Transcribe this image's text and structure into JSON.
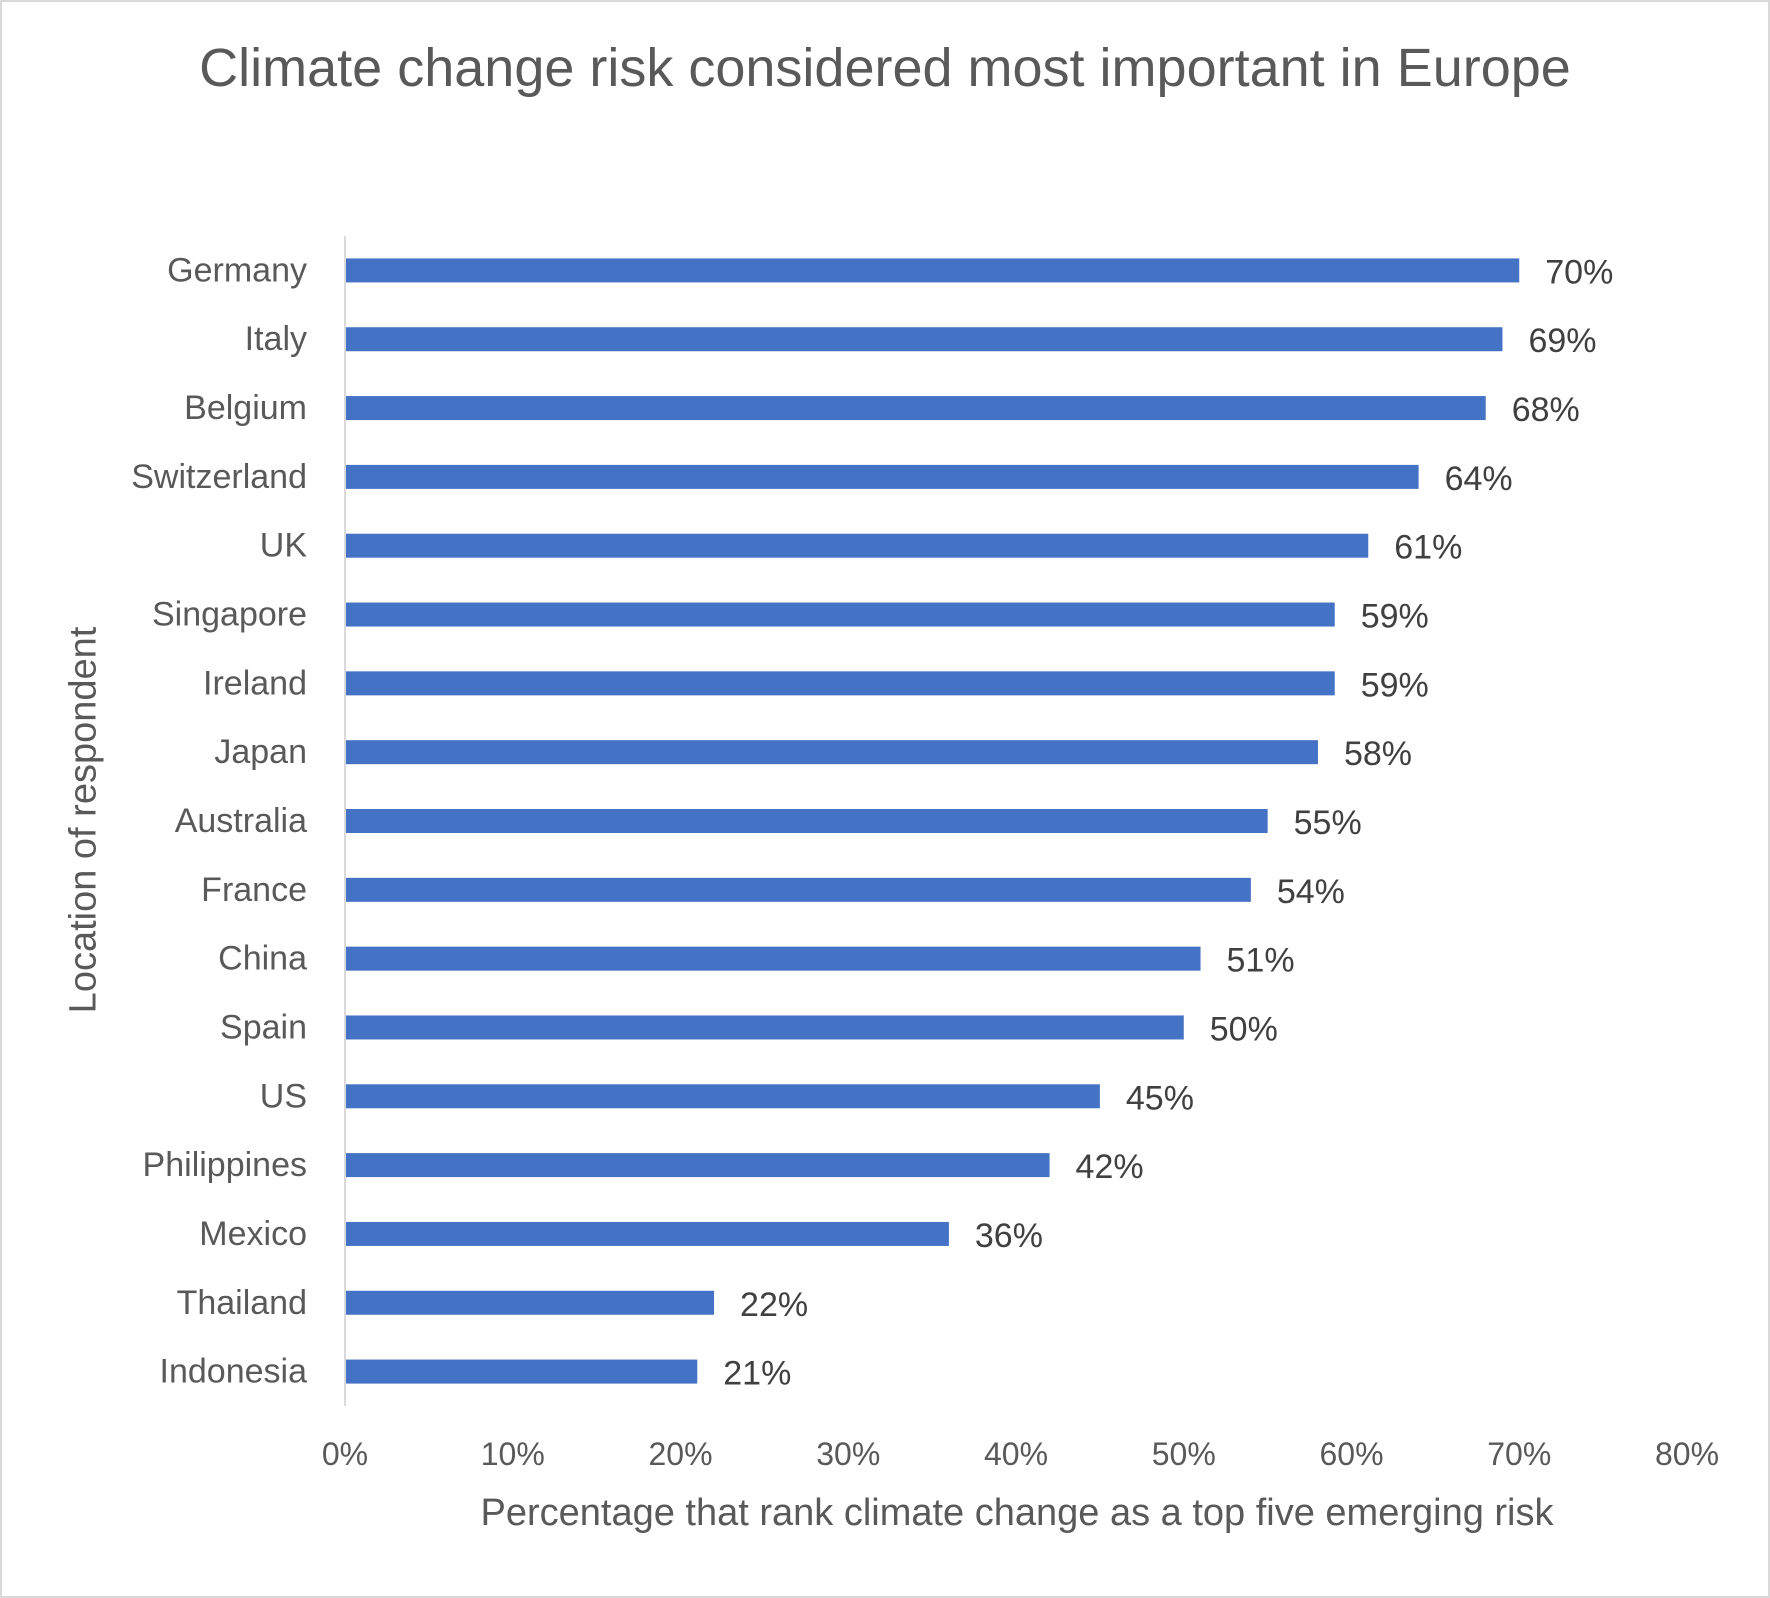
{
  "chart_data": {
    "type": "bar",
    "orientation": "horizontal",
    "title": "Climate change risk considered most important in Europe",
    "xlabel": "Percentage that rank climate change as a top five emerging risk",
    "ylabel": "Location of respondent",
    "categories": [
      "Germany",
      "Italy",
      "Belgium",
      "Switzerland",
      "UK",
      "Singapore",
      "Ireland",
      "Japan",
      "Australia",
      "France",
      "China",
      "Spain",
      "US",
      "Philippines",
      "Mexico",
      "Thailand",
      "Indonesia"
    ],
    "values": [
      70,
      69,
      68,
      64,
      61,
      59,
      59,
      58,
      55,
      54,
      51,
      50,
      45,
      42,
      36,
      22,
      21
    ],
    "value_labels": [
      "70%",
      "69%",
      "68%",
      "64%",
      "61%",
      "59%",
      "59%",
      "58%",
      "55%",
      "54%",
      "51%",
      "50%",
      "45%",
      "42%",
      "36%",
      "22%",
      "21%"
    ],
    "xlim": [
      0,
      80
    ],
    "xticks": [
      0,
      10,
      20,
      30,
      40,
      50,
      60,
      70,
      80
    ],
    "xtick_labels": [
      "0%",
      "10%",
      "20%",
      "30%",
      "40%",
      "50%",
      "60%",
      "70%",
      "80%"
    ],
    "bar_color": "#4472c4",
    "grid": false,
    "legend": "none"
  }
}
